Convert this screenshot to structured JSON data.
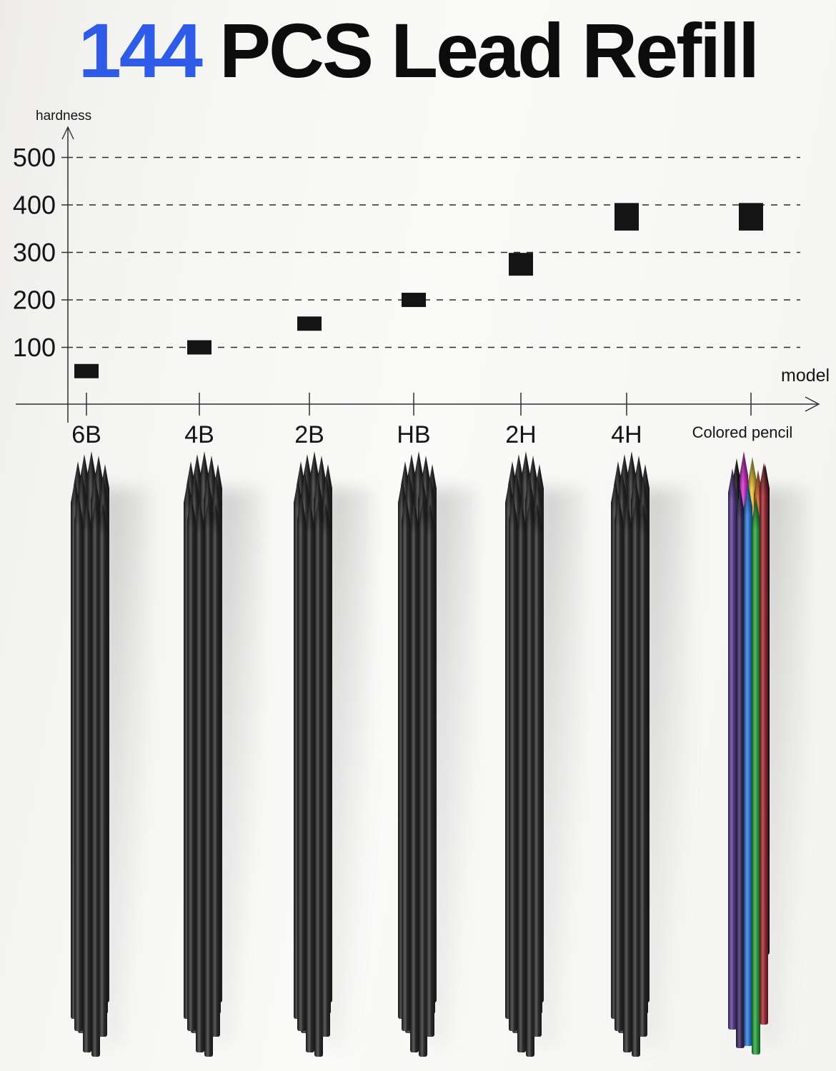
{
  "title": {
    "count": "144",
    "rest": "PCS Lead Refill"
  },
  "colors": {
    "accent_blue": "#2e5be8",
    "text_black": "#0c0c0c",
    "marker_black": "#141414"
  },
  "chart_data": {
    "type": "scatter",
    "title": "144 PCS Lead Refill",
    "xlabel": "model",
    "ylabel": "hardness",
    "categories": [
      "6B",
      "4B",
      "2B",
      "HB",
      "2H",
      "4H",
      "Colored pencil"
    ],
    "values": [
      50,
      100,
      150,
      200,
      275,
      375,
      375
    ],
    "marker_value_spans": [
      30,
      30,
      30,
      30,
      48,
      58,
      58
    ],
    "yticks": [
      100,
      200,
      300,
      400,
      500
    ],
    "ylim": [
      0,
      560
    ],
    "grid": "horizontal dashed",
    "legend": "none",
    "marker_style": "black filled square"
  },
  "bundles": {
    "items": [
      {
        "label": "6B",
        "type": "graphite"
      },
      {
        "label": "4B",
        "type": "graphite"
      },
      {
        "label": "2B",
        "type": "graphite"
      },
      {
        "label": "HB",
        "type": "graphite"
      },
      {
        "label": "2H",
        "type": "graphite"
      },
      {
        "label": "4H",
        "type": "graphite"
      },
      {
        "label": "Colored pencil",
        "type": "colored"
      }
    ],
    "graphite_color": "#2e2e2e",
    "colored_colors": {
      "purple": "#5a3c8f",
      "dark_violet": "#3a2a60",
      "blue": "#2e7ad6",
      "green": "#2aa23c",
      "red": "#a02a36",
      "magenta": "#cf2ecb",
      "yellow": "#e5c435",
      "orange": "#dd6b28",
      "black": "#1c1c1c"
    }
  }
}
